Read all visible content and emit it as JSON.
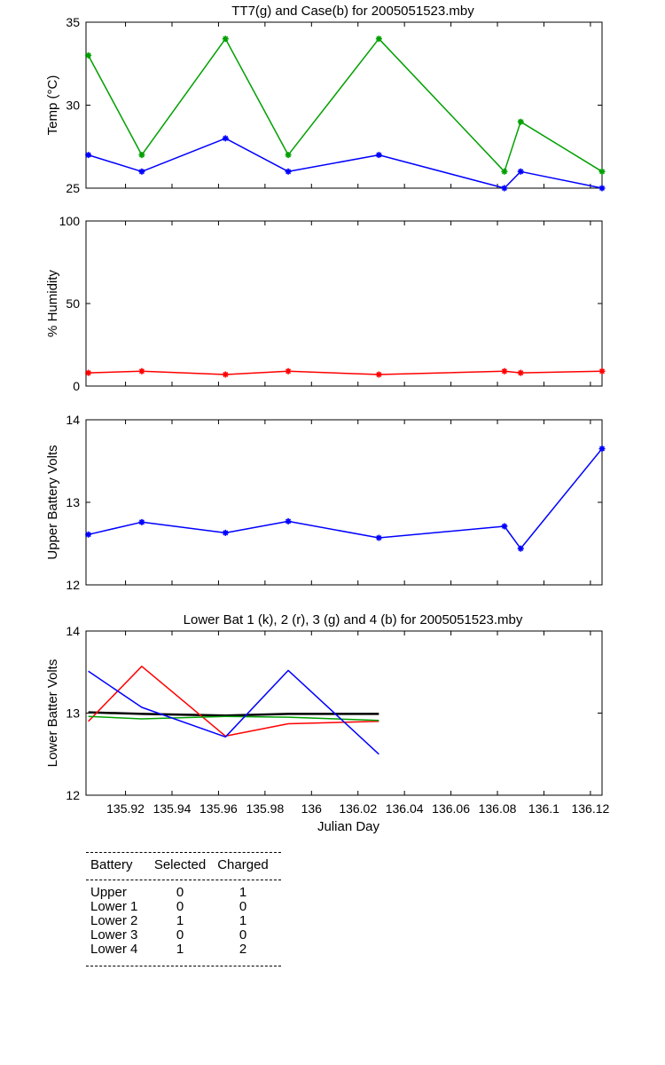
{
  "chart_data": [
    {
      "type": "line",
      "title": "TT7(g) and Case(b) for 2005051523.mby",
      "xlabel": "",
      "ylabel": "Temp  (°C)",
      "xlim": [
        135.903,
        136.125
      ],
      "ylim": [
        25,
        35
      ],
      "yticks": [
        25,
        30,
        35
      ],
      "grid": false,
      "series": [
        {
          "color": "#00a000",
          "marker": "*",
          "x": [
            135.904,
            135.927,
            135.963,
            135.99,
            136.029,
            136.083,
            136.09,
            136.125
          ],
          "y": [
            33,
            27,
            34,
            27,
            34,
            26,
            29,
            26
          ]
        },
        {
          "color": "#0000ff",
          "marker": "*",
          "x": [
            135.904,
            135.927,
            135.963,
            135.99,
            136.029,
            136.083,
            136.09,
            136.125
          ],
          "y": [
            27,
            26,
            28,
            26,
            27,
            25,
            26,
            25
          ]
        }
      ]
    },
    {
      "type": "line",
      "title": "",
      "xlabel": "",
      "ylabel": "% Humidity",
      "xlim": [
        135.903,
        136.125
      ],
      "ylim": [
        0,
        100
      ],
      "yticks": [
        0,
        50,
        100
      ],
      "grid": false,
      "series": [
        {
          "color": "#ff0000",
          "marker": "*",
          "x": [
            135.904,
            135.927,
            135.963,
            135.99,
            136.029,
            136.083,
            136.09,
            136.125
          ],
          "y": [
            8,
            9,
            7,
            9,
            7,
            9,
            8,
            9
          ]
        }
      ]
    },
    {
      "type": "line",
      "title": "",
      "xlabel": "",
      "ylabel": "Upper Battery Volts",
      "xlim": [
        135.903,
        136.125
      ],
      "ylim": [
        12,
        14
      ],
      "yticks": [
        12,
        13,
        14
      ],
      "grid": false,
      "series": [
        {
          "color": "#0000ff",
          "marker": "*",
          "x": [
            135.904,
            135.927,
            135.963,
            135.99,
            136.029,
            136.083,
            136.09,
            136.125
          ],
          "y": [
            12.61,
            12.76,
            12.63,
            12.77,
            12.57,
            12.71,
            12.44,
            13.65
          ]
        }
      ]
    },
    {
      "type": "line",
      "title": "Lower Bat 1 (k), 2 (r), 3 (g) and 4 (b) for 2005051523.mby",
      "xlabel": "Julian Day",
      "ylabel": "Lower Batter Volts",
      "xlim": [
        135.903,
        136.125
      ],
      "ylim": [
        12,
        14
      ],
      "yticks": [
        12,
        13,
        14
      ],
      "xticks": [
        "135.92",
        "135.94",
        "135.96",
        "135.98",
        "136",
        "136.02",
        "136.04",
        "136.06",
        "136.08",
        "136.1",
        "136.12"
      ],
      "grid": false,
      "series": [
        {
          "color": "#000000",
          "marker": "",
          "x": [
            135.904,
            135.927,
            135.963,
            135.99,
            136.029
          ],
          "y": [
            13.01,
            12.99,
            12.97,
            12.99,
            12.99
          ]
        },
        {
          "color": "#ff0000",
          "marker": "",
          "x": [
            135.904,
            135.927,
            135.963,
            135.99,
            136.029
          ],
          "y": [
            12.9,
            13.57,
            12.72,
            12.87,
            12.9
          ]
        },
        {
          "color": "#00a000",
          "marker": "",
          "x": [
            135.904,
            135.927,
            135.963,
            135.99,
            136.029
          ],
          "y": [
            12.96,
            12.93,
            12.96,
            12.95,
            12.91
          ]
        },
        {
          "color": "#0000ff",
          "marker": "",
          "x": [
            135.904,
            135.927,
            135.963,
            135.99,
            136.029
          ],
          "y": [
            13.51,
            13.07,
            12.71,
            13.52,
            12.5
          ]
        }
      ]
    }
  ],
  "battery_table": {
    "headers": [
      "Battery",
      "Selected",
      "Charged"
    ],
    "rows": [
      [
        "Upper",
        "0",
        "1"
      ],
      [
        "Lower 1",
        "0",
        "0"
      ],
      [
        "Lower 2",
        "1",
        "1"
      ],
      [
        "Lower 3",
        "0",
        "0"
      ],
      [
        "Lower 4",
        "1",
        "2"
      ]
    ]
  }
}
